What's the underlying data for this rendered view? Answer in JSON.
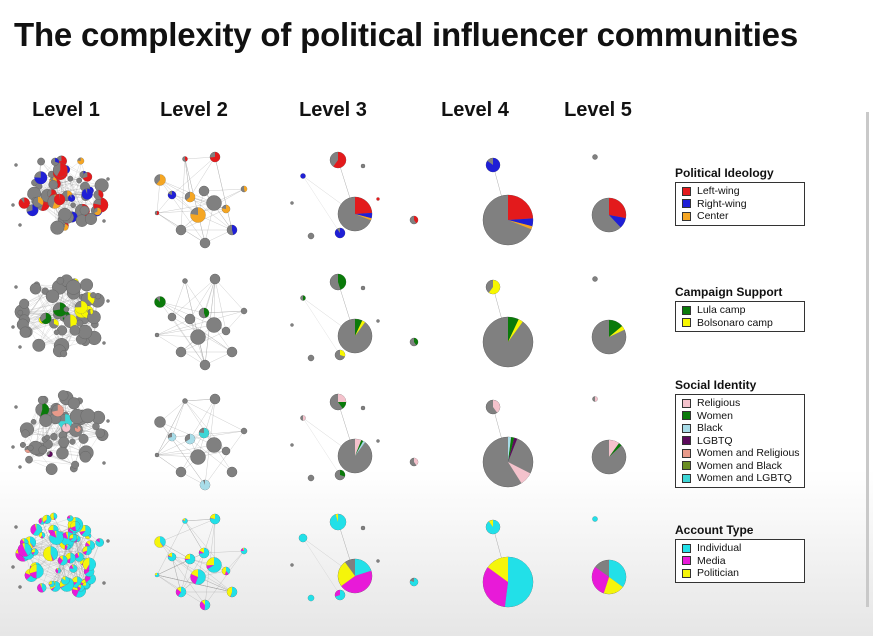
{
  "title": "The complexity of political influencer communities",
  "levels": [
    "Level 1",
    "Level 2",
    "Level 3",
    "Level 4",
    "Level 5"
  ],
  "colors": {
    "gray": "#808080",
    "left_wing": "#e31a1c",
    "right_wing": "#1f1fd6",
    "center": "#f5a623",
    "lula_camp": "#0a7a0a",
    "bolsonaro_camp": "#f7f700",
    "religious": "#f4c2cc",
    "women": "#0a7a0a",
    "black": "#a8dce8",
    "lgbtq": "#5c0a5c",
    "women_religious": "#e89a8a",
    "women_black": "#6b8e23",
    "women_lgbtq": "#3ed6d6",
    "individual": "#22e0e8",
    "media": "#e81ad8",
    "politician": "#f5f50a"
  },
  "legends": [
    {
      "title": "Political Ideology",
      "items": [
        {
          "label": "Left-wing",
          "color": "#e31a1c"
        },
        {
          "label": "Right-wing",
          "color": "#1f1fd6"
        },
        {
          "label": "Center",
          "color": "#f5a623"
        }
      ]
    },
    {
      "title": "Campaign Support",
      "items": [
        {
          "label": "Lula camp",
          "color": "#0a7a0a"
        },
        {
          "label": "Bolsonaro camp",
          "color": "#f7f700"
        }
      ]
    },
    {
      "title": "Social Identity",
      "items": [
        {
          "label": "Religious",
          "color": "#f4c2cc"
        },
        {
          "label": "Women",
          "color": "#0a7a0a"
        },
        {
          "label": "Black",
          "color": "#a8dce8"
        },
        {
          "label": "LGBTQ",
          "color": "#5c0a5c"
        },
        {
          "label": "Women and Religious",
          "color": "#e89a8a"
        },
        {
          "label": "Women and Black",
          "color": "#6b8e23"
        },
        {
          "label": "Women and LGBTQ",
          "color": "#3ed6d6"
        }
      ]
    },
    {
      "title": "Account Type",
      "items": [
        {
          "label": "Individual",
          "color": "#22e0e8"
        },
        {
          "label": "Media",
          "color": "#e81ad8"
        },
        {
          "label": "Politician",
          "color": "#f5f50a"
        }
      ]
    }
  ],
  "big_node_shares": {
    "ideology": {
      "left_wing": 0.24,
      "right_wing": 0.05,
      "center": 0.02
    },
    "campaign": {
      "lula_camp": 0.07,
      "bolsonaro_camp": 0.03
    },
    "identity": {
      "religious": 0.08,
      "women": 0.02,
      "black": 0.02
    },
    "account": {
      "individual": 0.52,
      "media": 0.33,
      "politician": 0.15
    }
  }
}
